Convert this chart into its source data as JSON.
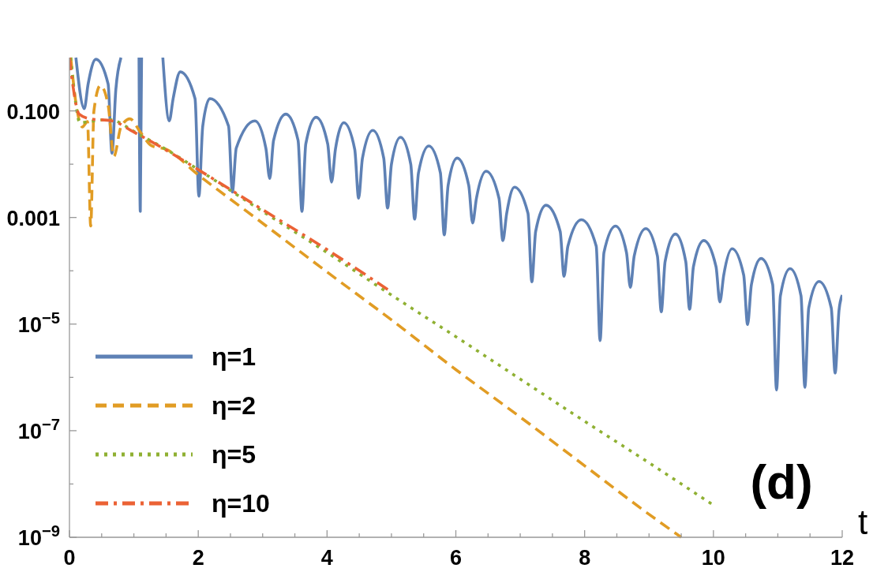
{
  "chart_data": {
    "type": "line",
    "xlabel": "t",
    "annotations": [
      "(d)"
    ],
    "log": "y",
    "legend": "bottom left",
    "grid": false,
    "xlim": [
      0,
      12
    ],
    "xticks": [
      0,
      {
        "value": 0.5,
        "label": null
      },
      2,
      {
        "value": 1,
        "label": null
      },
      {
        "value": 1.5,
        "label": null
      },
      {
        "value": 2.5,
        "label": null
      },
      {
        "value": 3,
        "label": null
      },
      {
        "value": 3.5,
        "label": null
      },
      4,
      {
        "value": 4.5,
        "label": null
      },
      {
        "value": 5,
        "label": null
      },
      {
        "value": 5.5,
        "label": null
      },
      6,
      {
        "value": 6.5,
        "label": null
      },
      {
        "value": 7,
        "label": null
      },
      {
        "value": 7.5,
        "label": null
      },
      8,
      {
        "value": 8.5,
        "label": null
      },
      {
        "value": 9,
        "label": null
      },
      {
        "value": 9.5,
        "label": null
      },
      10,
      {
        "value": 10.5,
        "label": null
      },
      {
        "value": 11,
        "label": null
      },
      {
        "value": 11.5,
        "label": null
      },
      12
    ],
    "ylim": [
      1e-09,
      1
    ],
    "yticks": [
      {
        "value": 1e-09,
        "label": "10$^{−9}$"
      },
      {
        "value": 1e-08,
        "label": null
      },
      {
        "value": 1e-07,
        "label": "10$^{−7}$"
      },
      {
        "value": 1e-06,
        "label": null
      },
      {
        "value": 1e-05,
        "label": "10$^{−5}$"
      },
      {
        "value": 0.0001,
        "label": null
      },
      {
        "value": 0.001,
        "label": "0.001"
      },
      {
        "value": 0.01,
        "label": null
      },
      {
        "value": 0.1,
        "label": "0.100"
      }
    ],
    "series": [
      {
        "name": "η=1",
        "color": "#5e81b5",
        "line_style": "solid",
        "x": [
          0.1,
          0.23,
          0.29,
          0.41,
          0.6,
          0.66,
          0.72,
          0.8,
          0.95,
          1.08,
          1.1,
          1.12,
          1.3,
          1.45,
          1.55,
          1.61,
          1.72,
          1.95,
          2.01,
          2.07,
          2.18,
          2.47,
          2.53,
          2.59,
          2.88,
          3.05,
          3.11,
          3.17,
          3.36,
          3.55,
          3.61,
          3.67,
          3.83,
          4.01,
          4.07,
          4.13,
          4.26,
          4.43,
          4.49,
          4.55,
          4.71,
          4.88,
          4.94,
          5.0,
          5.14,
          5.3,
          5.36,
          5.42,
          5.58,
          5.76,
          5.82,
          5.88,
          6.02,
          6.2,
          6.26,
          6.32,
          6.47,
          6.67,
          6.73,
          6.79,
          6.91,
          7.12,
          7.18,
          7.24,
          7.4,
          7.62,
          7.68,
          7.74,
          7.95,
          8.18,
          8.24,
          8.3,
          8.48,
          8.65,
          8.71,
          8.77,
          8.95,
          9.13,
          9.19,
          9.25,
          9.41,
          9.57,
          9.63,
          9.69,
          9.85,
          10.04,
          10.1,
          10.16,
          10.29,
          10.47,
          10.53,
          10.59,
          10.74,
          10.92,
          10.98,
          11.04,
          11.19,
          11.36,
          11.42,
          11.48,
          11.64,
          11.83,
          11.89,
          11.95,
          12
        ],
        "values": [
          1,
          0.11,
          0.32,
          0.93,
          0.32,
          0.016,
          0.25,
          1,
          null,
          1,
          0.0013,
          1,
          null,
          1,
          0.065,
          0.17,
          0.54,
          0.17,
          0.0025,
          0.052,
          0.17,
          0.052,
          0.003,
          0.02,
          0.065,
          0.02,
          0.0054,
          0.028,
          0.087,
          0.028,
          0.0013,
          0.024,
          0.076,
          0.024,
          0.0046,
          0.019,
          0.06,
          0.019,
          0.0023,
          0.013,
          0.043,
          0.013,
          0.0015,
          0.01,
          0.032,
          0.01,
          0.00093,
          0.0069,
          0.022,
          0.0069,
          0.00047,
          0.004,
          0.013,
          0.004,
          0.00079,
          0.0023,
          0.0074,
          0.0023,
          0.00037,
          0.0012,
          0.0037,
          0.0012,
          6.2e-05,
          0.00055,
          0.0017,
          0.00055,
          7.9e-05,
          0.00029,
          0.00091,
          0.00029,
          4.9e-06,
          0.00022,
          0.00069,
          0.00022,
          4.9e-05,
          0.00019,
          0.00062,
          0.00019,
          1.7e-05,
          0.00015,
          0.00049,
          0.00015,
          1.9e-05,
          0.00012,
          0.00037,
          0.00012,
          2.6e-05,
          8.3e-05,
          0.00026,
          8.3e-05,
          9.8e-06,
          5.5e-05,
          0.00017,
          5.5e-05,
          5.8e-07,
          3.4e-05,
          0.00011,
          3.4e-05,
          6.5e-07,
          2e-05,
          6.3e-05,
          2e-05,
          1.2e-06,
          1.8e-05,
          3.5e-05
        ]
      },
      {
        "name": "η=2",
        "color": "#e19c24",
        "line_style": "dashed",
        "x": [
          0.02,
          0.12,
          0.2,
          0.28,
          0.33,
          0.38,
          0.48,
          0.6,
          0.69,
          0.8,
          0.94,
          1.1,
          1.28,
          1.5,
          2,
          3,
          4,
          5,
          6,
          7,
          8,
          9,
          9.5
        ],
        "values": [
          1,
          0.1,
          0.05,
          0.063,
          0.00069,
          0.1,
          0.3,
          0.13,
          0.014,
          0.05,
          0.071,
          0.04,
          0.022,
          0.019,
          0.0063,
          0.00078,
          9.5e-05,
          1.2e-05,
          1.4e-06,
          1.8e-07,
          2.2e-08,
          2.7e-09,
          1e-09
        ]
      },
      {
        "name": "η=5",
        "color": "#8fb032",
        "line_style": "dotted",
        "x": [
          0.02,
          0.1,
          0.16,
          0.3,
          0.6,
          1.1,
          1.5,
          2,
          3,
          4,
          5,
          6,
          7,
          8,
          9,
          10
        ],
        "values": [
          1,
          0.13,
          0.06,
          0.063,
          0.069,
          0.035,
          0.019,
          0.0079,
          0.0013,
          0.00022,
          3.5e-05,
          5.8e-06,
          9.3e-07,
          1.5e-07,
          2.5e-08,
          4e-09
        ]
      },
      {
        "name": "η=10",
        "color": "#eb6235",
        "line_style": "dashdot",
        "x": [
          0,
          0.05,
          0.15,
          0.32,
          0.66,
          1,
          1.55,
          2,
          3,
          4,
          5
        ],
        "values": [
          1,
          0.32,
          0.087,
          0.071,
          0.065,
          0.04,
          0.017,
          0.0079,
          0.0014,
          0.00025,
          4e-05
        ]
      }
    ]
  }
}
